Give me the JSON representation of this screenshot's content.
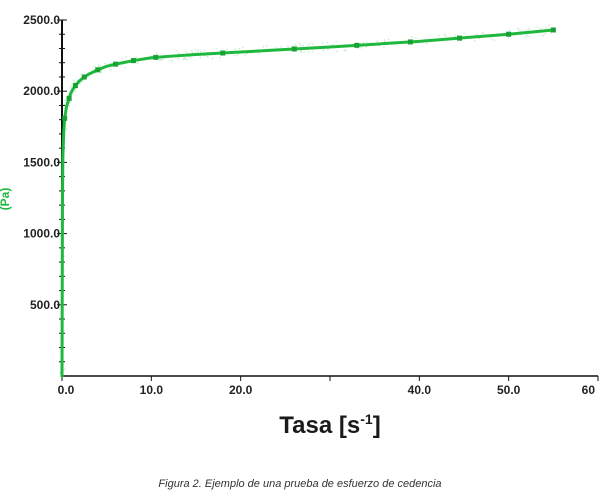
{
  "chart_data": {
    "type": "line",
    "xlabel": "Tasa [s",
    "xlabel_superscript": "-1",
    "xlabel_suffix": "]",
    "ylabel": "(Pa)",
    "xlim": [
      0,
      60
    ],
    "ylim": [
      0,
      2500
    ],
    "x_ticks": [
      0,
      10,
      20,
      30,
      40,
      50,
      60
    ],
    "x_tick_labels": [
      "0.0",
      "10.0",
      "20.0",
      "",
      "40.0",
      "50.0",
      "60"
    ],
    "y_ticks": [
      500,
      1000,
      1500,
      2000,
      2500
    ],
    "y_tick_labels": [
      "500.0",
      "1000.0",
      "1500.0",
      "2000.0",
      "2500.0"
    ],
    "grid": false,
    "series": [
      {
        "color": "#1fb83e",
        "x": [
          0.0,
          0.05,
          0.1,
          0.2,
          0.3,
          0.5,
          0.8,
          1.0,
          1.5,
          2.0,
          2.5,
          3.0,
          4.0,
          5.0,
          6.0,
          8.0,
          10.0,
          12.0,
          15.0,
          20.0,
          25.0,
          30.0,
          35.0,
          40.0,
          45.0,
          50.0,
          55.0
        ],
        "y": [
          0,
          1200,
          1550,
          1720,
          1810,
          1890,
          1950,
          1990,
          2040,
          2075,
          2100,
          2120,
          2150,
          2175,
          2190,
          2215,
          2235,
          2245,
          2258,
          2275,
          2293,
          2310,
          2330,
          2350,
          2375,
          2400,
          2430
        ]
      }
    ],
    "markers_x": [
      0.3,
      0.8,
      1.5,
      2.5,
      4.0,
      6.0,
      8.0,
      10.5,
      18.0,
      26.0,
      33.0,
      39.0,
      44.5,
      50.0,
      55.0
    ]
  },
  "caption": "Figura 2. Ejemplo de una prueba de esfuerzo de cedencia"
}
